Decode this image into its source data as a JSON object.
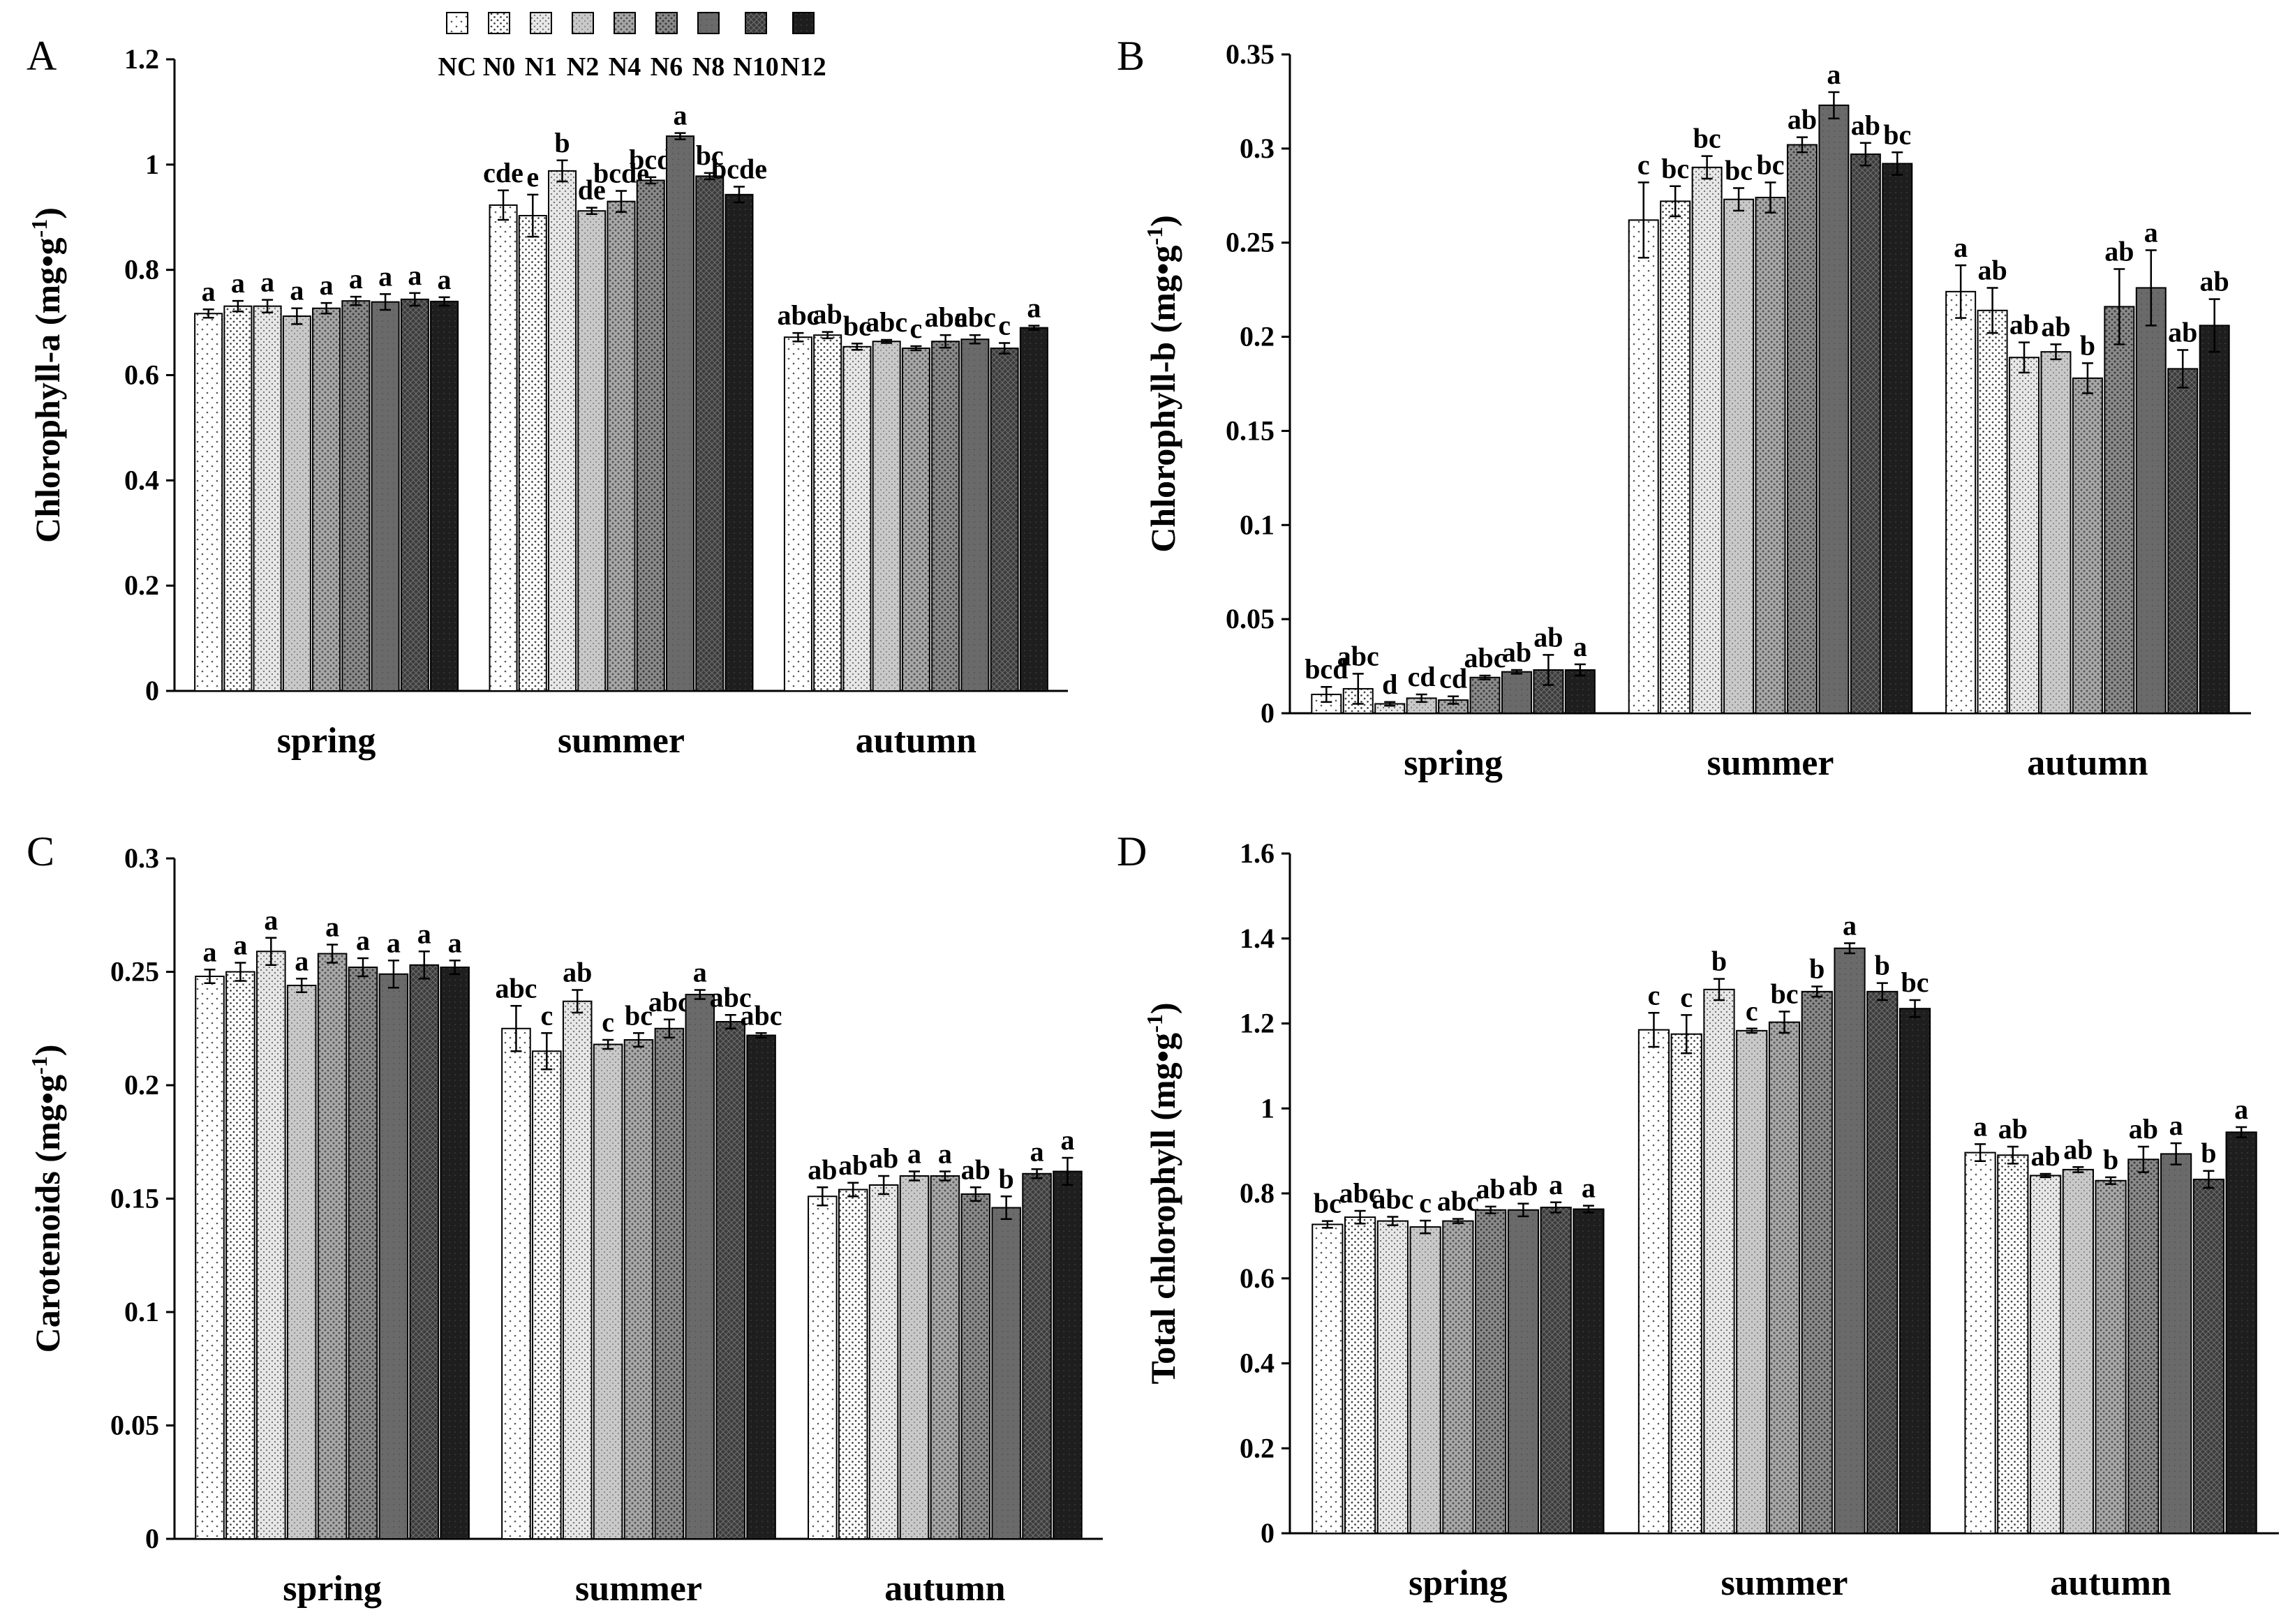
{
  "legend": {
    "treatments": [
      "NC",
      "N0",
      "N1",
      "N2",
      "N4",
      "N6",
      "N8",
      "N10",
      "N12"
    ],
    "pattern_names": [
      "pattern-sparse-dots",
      "pattern-dots",
      "pattern-light-fill",
      "pattern-light-gray",
      "pattern-medium-dots",
      "pattern-medium-gray",
      "pattern-dark-gray",
      "pattern-dark-cross",
      "pattern-black"
    ]
  },
  "chart_data": [
    {
      "panel": "A",
      "type": "bar",
      "ylabel": "Chlorophyll-a (mg•g",
      "ylabel_sup": "-1",
      "ylabel_end": ")",
      "ylim": [
        0,
        1.2
      ],
      "yticks": [
        0,
        0.2,
        0.4,
        0.6,
        0.8,
        1,
        1.2
      ],
      "ytick_labels": [
        "0",
        "0.2",
        "0.4",
        "0.6",
        "0.8",
        "1",
        "1.2"
      ],
      "categories": [
        "spring",
        "summer",
        "autumn"
      ],
      "series": [
        {
          "name": "NC",
          "values": [
            0.717,
            0.923,
            0.672
          ],
          "errors": [
            0.008,
            0.028,
            0.008
          ],
          "labels": [
            "a",
            "cde",
            "abc"
          ]
        },
        {
          "name": "N0",
          "values": [
            0.731,
            0.903,
            0.676
          ],
          "errors": [
            0.01,
            0.04,
            0.006
          ],
          "labels": [
            "a",
            "e",
            "ab"
          ]
        },
        {
          "name": "N1",
          "values": [
            0.731,
            0.988,
            0.654
          ],
          "errors": [
            0.012,
            0.02,
            0.006
          ],
          "labels": [
            "a",
            "b",
            "bc"
          ]
        },
        {
          "name": "N2",
          "values": [
            0.712,
            0.912,
            0.664
          ],
          "errors": [
            0.015,
            0.006,
            0.003
          ],
          "labels": [
            "a",
            "de",
            "abc"
          ]
        },
        {
          "name": "N4",
          "values": [
            0.727,
            0.93,
            0.651
          ],
          "errors": [
            0.01,
            0.02,
            0.004
          ],
          "labels": [
            "a",
            "bcde",
            "c"
          ]
        },
        {
          "name": "N6",
          "values": [
            0.741,
            0.97,
            0.664
          ],
          "errors": [
            0.008,
            0.006,
            0.012
          ],
          "labels": [
            "a",
            "bcd",
            "abc"
          ]
        },
        {
          "name": "N8",
          "values": [
            0.739,
            1.054,
            0.668
          ],
          "errors": [
            0.015,
            0.006,
            0.008
          ],
          "labels": [
            "a",
            "a",
            "abc"
          ]
        },
        {
          "name": "N10",
          "values": [
            0.744,
            0.978,
            0.651
          ],
          "errors": [
            0.012,
            0.006,
            0.01
          ],
          "labels": [
            "a",
            "bc",
            "c"
          ]
        },
        {
          "name": "N12",
          "values": [
            0.74,
            0.943,
            0.69
          ],
          "errors": [
            0.008,
            0.015,
            0.004
          ],
          "labels": [
            "a",
            "bcde",
            "a"
          ]
        }
      ]
    },
    {
      "panel": "B",
      "type": "bar",
      "ylabel": "Chlorophyll-b (mg•g",
      "ylabel_sup": "-1",
      "ylabel_end": ")",
      "ylim": [
        0,
        0.35
      ],
      "yticks": [
        0,
        0.05,
        0.1,
        0.15,
        0.2,
        0.25,
        0.3,
        0.35
      ],
      "ytick_labels": [
        "0",
        "0.05",
        "0.1",
        "0.15",
        "0.2",
        "0.25",
        "0.3",
        "0.35"
      ],
      "categories": [
        "spring",
        "summer",
        "autumn"
      ],
      "series": [
        {
          "name": "NC",
          "values": [
            0.01,
            0.262,
            0.224
          ],
          "errors": [
            0.004,
            0.02,
            0.014
          ],
          "labels": [
            "bcd",
            "c",
            "a"
          ]
        },
        {
          "name": "N0",
          "values": [
            0.013,
            0.272,
            0.214
          ],
          "errors": [
            0.008,
            0.008,
            0.012
          ],
          "labels": [
            "abc",
            "bc",
            "ab"
          ]
        },
        {
          "name": "N1",
          "values": [
            0.005,
            0.29,
            0.189
          ],
          "errors": [
            0.001,
            0.006,
            0.008
          ],
          "labels": [
            "d",
            "bc",
            "ab"
          ]
        },
        {
          "name": "N2",
          "values": [
            0.008,
            0.273,
            0.192
          ],
          "errors": [
            0.002,
            0.006,
            0.004
          ],
          "labels": [
            "cd",
            "bc",
            "ab"
          ]
        },
        {
          "name": "N4",
          "values": [
            0.007,
            0.274,
            0.178
          ],
          "errors": [
            0.002,
            0.008,
            0.008
          ],
          "labels": [
            "cd",
            "bc",
            "b"
          ]
        },
        {
          "name": "N6",
          "values": [
            0.019,
            0.302,
            0.216
          ],
          "errors": [
            0.001,
            0.004,
            0.02
          ],
          "labels": [
            "abc",
            "ab",
            "ab"
          ]
        },
        {
          "name": "N8",
          "values": [
            0.022,
            0.323,
            0.226
          ],
          "errors": [
            0.001,
            0.007,
            0.02
          ],
          "labels": [
            "ab",
            "a",
            "a"
          ]
        },
        {
          "name": "N10",
          "values": [
            0.023,
            0.297,
            0.183
          ],
          "errors": [
            0.008,
            0.006,
            0.01
          ],
          "labels": [
            "ab",
            "ab",
            "ab"
          ]
        },
        {
          "name": "N12",
          "values": [
            0.023,
            0.292,
            0.206
          ],
          "errors": [
            0.003,
            0.006,
            0.014
          ],
          "labels": [
            "a",
            "bc",
            "ab"
          ]
        }
      ]
    },
    {
      "panel": "C",
      "type": "bar",
      "ylabel": "Carotenoids (mg•g",
      "ylabel_sup": "-1",
      "ylabel_end": ")",
      "ylim": [
        0,
        0.3
      ],
      "yticks": [
        0,
        0.05,
        0.1,
        0.15,
        0.2,
        0.25,
        0.3
      ],
      "ytick_labels": [
        "0",
        "0.05",
        "0.1",
        "0.15",
        "0.2",
        "0.25",
        "0.3"
      ],
      "categories": [
        "spring",
        "summer",
        "autumn"
      ],
      "series": [
        {
          "name": "NC",
          "values": [
            0.248,
            0.225,
            0.151
          ],
          "errors": [
            0.003,
            0.01,
            0.004
          ],
          "labels": [
            "a",
            "abc",
            "ab"
          ]
        },
        {
          "name": "N0",
          "values": [
            0.25,
            0.215,
            0.154
          ],
          "errors": [
            0.004,
            0.008,
            0.003
          ],
          "labels": [
            "a",
            "c",
            "ab"
          ]
        },
        {
          "name": "N1",
          "values": [
            0.259,
            0.237,
            0.156
          ],
          "errors": [
            0.006,
            0.005,
            0.004
          ],
          "labels": [
            "a",
            "ab",
            "ab"
          ]
        },
        {
          "name": "N2",
          "values": [
            0.244,
            0.218,
            0.16
          ],
          "errors": [
            0.003,
            0.002,
            0.002
          ],
          "labels": [
            "a",
            "c",
            "a"
          ]
        },
        {
          "name": "N4",
          "values": [
            0.258,
            0.22,
            0.16
          ],
          "errors": [
            0.004,
            0.003,
            0.002
          ],
          "labels": [
            "a",
            "bc",
            "a"
          ]
        },
        {
          "name": "N6",
          "values": [
            0.252,
            0.225,
            0.152
          ],
          "errors": [
            0.004,
            0.004,
            0.003
          ],
          "labels": [
            "a",
            "abc",
            "ab"
          ]
        },
        {
          "name": "N8",
          "values": [
            0.249,
            0.24,
            0.146
          ],
          "errors": [
            0.006,
            0.002,
            0.005
          ],
          "labels": [
            "a",
            "a",
            "b"
          ]
        },
        {
          "name": "N10",
          "values": [
            0.253,
            0.228,
            0.161
          ],
          "errors": [
            0.006,
            0.003,
            0.002
          ],
          "labels": [
            "a",
            "abc",
            "a"
          ]
        },
        {
          "name": "N12",
          "values": [
            0.252,
            0.222,
            0.162
          ],
          "errors": [
            0.003,
            0.001,
            0.006
          ],
          "labels": [
            "a",
            "abc",
            "a"
          ]
        }
      ]
    },
    {
      "panel": "D",
      "type": "bar",
      "ylabel": "Total chlorophyll (mg•g",
      "ylabel_sup": "-1",
      "ylabel_end": ")",
      "ylim": [
        0,
        1.6
      ],
      "yticks": [
        0,
        0.2,
        0.4,
        0.6,
        0.8,
        1,
        1.2,
        1.4,
        1.6
      ],
      "ytick_labels": [
        "0",
        "0.2",
        "0.4",
        "0.6",
        "0.8",
        "1",
        "1.2",
        "1.4",
        "1.6"
      ],
      "categories": [
        "spring",
        "summer",
        "autumn"
      ],
      "series": [
        {
          "name": "NC",
          "values": [
            0.727,
            1.185,
            0.896
          ],
          "errors": [
            0.008,
            0.04,
            0.02
          ],
          "labels": [
            "bc",
            "c",
            "a"
          ]
        },
        {
          "name": "N0",
          "values": [
            0.744,
            1.175,
            0.89
          ],
          "errors": [
            0.015,
            0.045,
            0.02
          ],
          "labels": [
            "abc",
            "c",
            "ab"
          ]
        },
        {
          "name": "N1",
          "values": [
            0.735,
            1.28,
            0.842
          ],
          "errors": [
            0.01,
            0.025,
            0.004
          ],
          "labels": [
            "abc",
            "b",
            "ab"
          ]
        },
        {
          "name": "N2",
          "values": [
            0.721,
            1.183,
            0.856
          ],
          "errors": [
            0.015,
            0.005,
            0.006
          ],
          "labels": [
            "c",
            "c",
            "ab"
          ]
        },
        {
          "name": "N4",
          "values": [
            0.735,
            1.203,
            0.83
          ],
          "errors": [
            0.005,
            0.025,
            0.008
          ],
          "labels": [
            "abc",
            "bc",
            "b"
          ]
        },
        {
          "name": "N6",
          "values": [
            0.761,
            1.275,
            0.88
          ],
          "errors": [
            0.008,
            0.012,
            0.03
          ],
          "labels": [
            "ab",
            "b",
            "ab"
          ]
        },
        {
          "name": "N8",
          "values": [
            0.761,
            1.377,
            0.893
          ],
          "errors": [
            0.015,
            0.012,
            0.025
          ],
          "labels": [
            "ab",
            "a",
            "a"
          ]
        },
        {
          "name": "N10",
          "values": [
            0.767,
            1.275,
            0.833
          ],
          "errors": [
            0.012,
            0.02,
            0.02
          ],
          "labels": [
            "a",
            "b",
            "b"
          ]
        },
        {
          "name": "N12",
          "values": [
            0.763,
            1.235,
            0.944
          ],
          "errors": [
            0.008,
            0.02,
            0.012
          ],
          "labels": [
            "a",
            "bc",
            "a"
          ]
        }
      ]
    }
  ]
}
